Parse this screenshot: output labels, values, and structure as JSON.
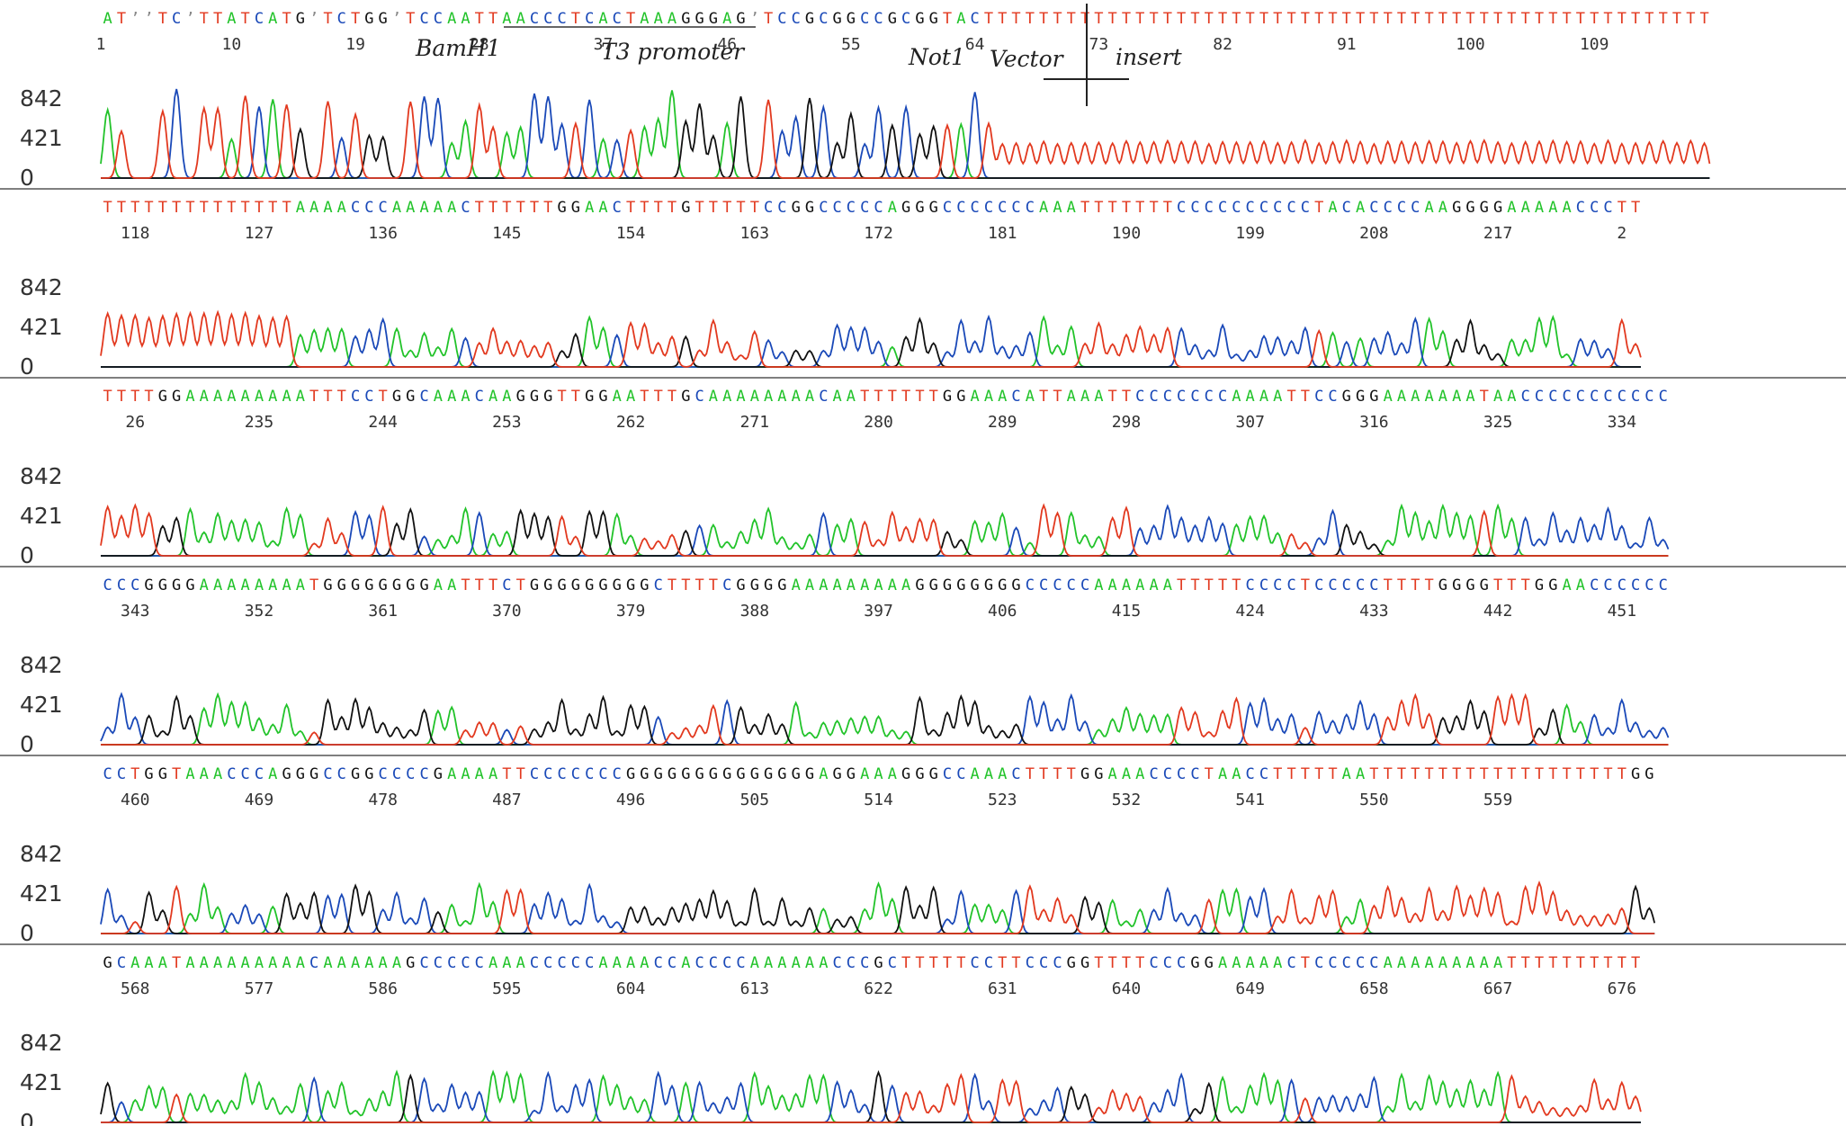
{
  "colors": {
    "A": "#22c32a",
    "C": "#1a49b8",
    "G": "#111111",
    "T": "#e2391f",
    "N": "#888888"
  },
  "chart_data": {
    "type": "line",
    "title": "",
    "xlabel": "",
    "ylabel": "",
    "y_ticks": [
      "842",
      "421",
      "0"
    ],
    "ylim": [
      0,
      1100
    ],
    "series": [
      {
        "name": "A",
        "color": "#22c32a"
      },
      {
        "name": "C",
        "color": "#1a49b8"
      },
      {
        "name": "G",
        "color": "#111111"
      },
      {
        "name": "T",
        "color": "#e2391f"
      }
    ],
    "legend": "none",
    "grid": false,
    "panels": [
      {
        "bases": "ATNNTCNTTATCATGNTCTGGNTCCAATTAACCCTCACTAAAGGGAGNTCCGCGGCCGCGGTACTTTTTTTTTTTTTTTTTTTTTTTTTTTTTTTTTTTTTTTTTTTTTTTTTTTTT",
        "start": 1,
        "ticks": [
          "1",
          "10",
          "19",
          "28",
          "37",
          "46",
          "55",
          "64",
          "73",
          "82",
          "91",
          "100",
          "109"
        ],
        "annotations": [
          "BamH1",
          "T3 promoter",
          "Not1",
          "Vector",
          "insert"
        ]
      },
      {
        "bases": "TTTTTTTTTTTTTTAAAACCCAAAAACTTTTTTGGAACTTTTGTTTTTCCGGCCCCCAGGGCCCCCCCAAATTTTTTTCCCCCCCCCCTACACCCCAAGGGGAAAAACCCTT",
        "start": 111,
        "ticks": [
          "118",
          "127",
          "136",
          "145",
          "154",
          "163",
          "172",
          "181",
          "190",
          "199",
          "208",
          "217",
          "2"
        ]
      },
      {
        "bases": "TTTTGGAAAAAAAAATTTCCTGGCAAACAAGGGTTGGAATTTGCAAAAAAAACAATTTTTTGGAAACATTAAATTCCCCCCCAAAATTCCGGGAAAAAAATAACCCCCCCCCCC",
        "start": 226,
        "ticks": [
          "26",
          "235",
          "244",
          "253",
          "262",
          "271",
          "280",
          "289",
          "298",
          "307",
          "316",
          "325",
          "334"
        ]
      },
      {
        "bases": "CCCGGGGAAAAAAAATGGGGGGGGAATTTCTGGGGGGGGGCTTTTCGGGGAAAAAAAAAGGGGGGGGCCCCCAAAAAATTTTTCCCCTCCCCCTTTTGGGGTTTGGAACCCCCC",
        "start": 341,
        "ticks": [
          "343",
          "352",
          "361",
          "370",
          "379",
          "388",
          "397",
          "406",
          "415",
          "424",
          "433",
          "442",
          "451"
        ]
      },
      {
        "bases": "CCTGGTAAACCCAGGGCCGGCCCCGAAAATTCCCCCCCGGGGGGGGGGGGGGAGGAAAGGGCCAAACTTTTGGAAACCCCTAACCTTTTTAATTTTTTTTTTTTTTTTTTTGG",
        "start": 457,
        "ticks": [
          "460",
          "469",
          "478",
          "487",
          "496",
          "505",
          "514",
          "523",
          "532",
          "541",
          "550",
          "559"
        ]
      },
      {
        "bases": "GCAAATAAAAAAAAACAAAAAAGCCCCCAAACCCCCAAAACCACCCCAAAAAACCCGCTTTTTCCTTCCCGGTTTTCCCGGAAAAACTCCCCCAAAAAAAAATTTTTTTTTT",
        "start": 566,
        "ticks": [
          "568",
          "577",
          "586",
          "595",
          "604",
          "613",
          "622",
          "631",
          "640",
          "649",
          "658",
          "667",
          "676"
        ]
      }
    ]
  }
}
